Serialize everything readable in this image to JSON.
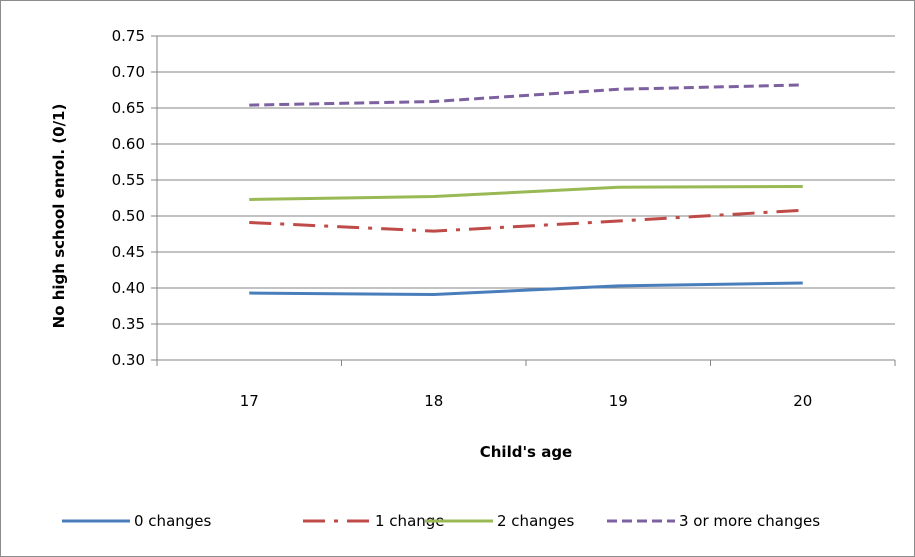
{
  "chart_data": {
    "type": "line",
    "title": "",
    "xlabel": "Child's age",
    "ylabel": "No high school enrol. (0/1)",
    "categories": [
      "17",
      "18",
      "19",
      "20"
    ],
    "ylim": [
      0.3,
      0.75
    ],
    "ytick_labels": [
      "0.30",
      "0.35",
      "0.40",
      "0.45",
      "0.50",
      "0.55",
      "0.60",
      "0.65",
      "0.70",
      "0.75"
    ],
    "grid": true,
    "legend_position": "bottom",
    "series": [
      {
        "name": "0 changes",
        "values": [
          0.393,
          0.391,
          0.403,
          0.407
        ],
        "color": "#4a7ebb",
        "style": "solid"
      },
      {
        "name": "1 change",
        "values": [
          0.491,
          0.479,
          0.493,
          0.508
        ],
        "color": "#be4b48",
        "style": "dashdot"
      },
      {
        "name": "2 changes",
        "values": [
          0.523,
          0.527,
          0.54,
          0.541
        ],
        "color": "#98b954",
        "style": "solid"
      },
      {
        "name": "3 or more changes",
        "values": [
          0.654,
          0.659,
          0.676,
          0.682
        ],
        "color": "#7d60a0",
        "style": "dash"
      }
    ]
  }
}
